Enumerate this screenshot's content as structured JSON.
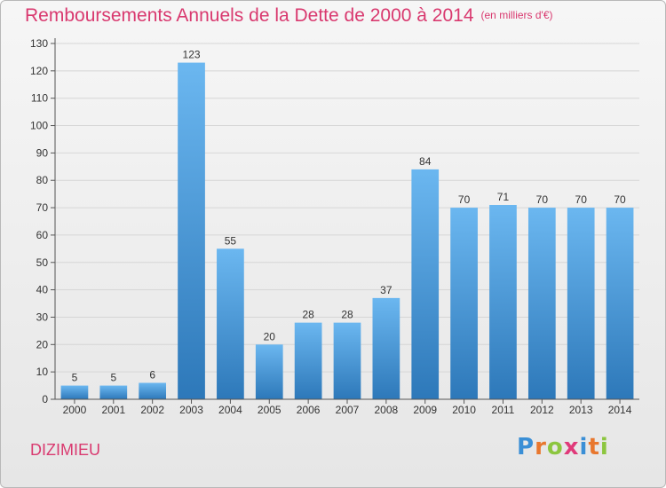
{
  "title": "Remboursements Annuels de la Dette de 2000 à 2014",
  "unit": "(en milliers d'€)",
  "place": "DIZIMIEU",
  "logo": {
    "text": "Proxiti",
    "colors": [
      "#3a8fd6",
      "#e8772e",
      "#8cc63f",
      "#e03a7a",
      "#3a8fd6",
      "#e8772e",
      "#8cc63f"
    ]
  },
  "colors": {
    "title": "#d9396f",
    "bar_top": "#6bb7f0",
    "bar_bottom": "#2d78b9",
    "grid": "#d6d6d6"
  },
  "chart_data": {
    "type": "bar",
    "categories": [
      "2000",
      "2001",
      "2002",
      "2003",
      "2004",
      "2005",
      "2006",
      "2007",
      "2008",
      "2009",
      "2010",
      "2011",
      "2012",
      "2013",
      "2014"
    ],
    "values": [
      5,
      5,
      6,
      123,
      55,
      20,
      28,
      28,
      37,
      84,
      70,
      71,
      70,
      70,
      70
    ],
    "ylim": [
      0,
      130
    ],
    "yticks": [
      0,
      10,
      20,
      30,
      40,
      50,
      60,
      70,
      80,
      90,
      100,
      110,
      120,
      130
    ],
    "grid": true,
    "data_labels": true
  }
}
